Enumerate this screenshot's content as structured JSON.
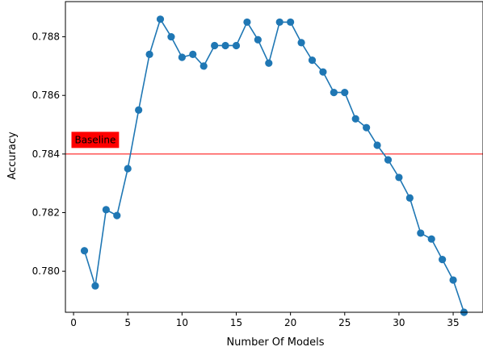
{
  "chart_data": {
    "type": "line",
    "title": "",
    "xlabel": "Number Of Models",
    "ylabel": "Accuracy",
    "xlim": [
      -0.75,
      37.75
    ],
    "ylim": [
      0.7786,
      0.7892
    ],
    "xticks": [
      0,
      5,
      10,
      15,
      20,
      25,
      30,
      35
    ],
    "yticks": [
      0.78,
      0.782,
      0.784,
      0.786,
      0.788
    ],
    "grid": false,
    "legend": "none",
    "series": [
      {
        "color": "#1f77b4",
        "marker": "circle",
        "x": [
          1,
          2,
          3,
          4,
          5,
          6,
          7,
          8,
          9,
          10,
          11,
          12,
          13,
          14,
          15,
          16,
          17,
          18,
          19,
          20,
          21,
          22,
          23,
          24,
          25,
          26,
          27,
          28,
          29,
          30,
          31,
          32,
          33,
          34,
          35,
          36
        ],
        "y": [
          0.7807,
          0.7795,
          0.7821,
          0.7819,
          0.7835,
          0.7855,
          0.7874,
          0.7886,
          0.788,
          0.7873,
          0.7874,
          0.787,
          0.7877,
          0.7877,
          0.7877,
          0.7885,
          0.7879,
          0.7871,
          0.7885,
          0.7885,
          0.7878,
          0.7872,
          0.7868,
          0.7861,
          0.7861,
          0.7852,
          0.7849,
          0.7843,
          0.7838,
          0.7832,
          0.7825,
          0.7813,
          0.7811,
          0.7804,
          0.7797,
          0.7786
        ]
      }
    ],
    "baseline": {
      "value": 0.784,
      "label": "Baseline",
      "color": "#ff0000",
      "label_x": 2
    }
  }
}
